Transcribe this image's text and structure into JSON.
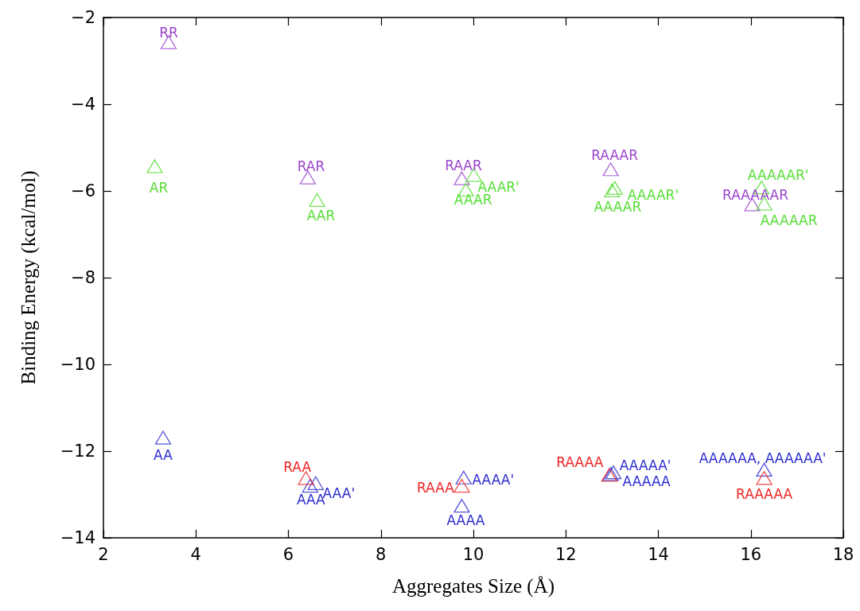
{
  "chart_data": {
    "type": "scatter",
    "xlabel": "Aggregates Size (Å)",
    "ylabel": "Binding Energy (kcal/mol)",
    "xlim": [
      2,
      18
    ],
    "xticks": [
      2,
      4,
      6,
      8,
      10,
      12,
      14,
      16,
      18
    ],
    "ylim": [
      -14,
      -2
    ],
    "yticks": [
      -14,
      -12,
      -10,
      -8,
      -6,
      -4,
      -2
    ],
    "grid": false,
    "marker": "triangle",
    "series": [
      {
        "color": "#9944cc",
        "x": [
          3.41,
          6.42,
          9.75,
          12.97,
          16.03
        ],
        "values": [
          -2.57,
          -5.69,
          -5.71,
          -5.5,
          -6.31
        ]
      },
      {
        "color": "#55dd33",
        "x": [
          3.11,
          6.62,
          10.01,
          9.84,
          13.06,
          13.0,
          16.23,
          16.29
        ],
        "values": [
          -5.43,
          -6.21,
          -5.63,
          -5.97,
          -5.93,
          -5.99,
          -5.92,
          -6.29
        ]
      },
      {
        "color": "#2a2ad0",
        "x": [
          3.29,
          6.47,
          6.59,
          9.79,
          9.75,
          13.03,
          12.97,
          16.29
        ],
        "values": [
          -11.69,
          -12.8,
          -12.74,
          -12.61,
          -13.26,
          -12.49,
          -12.53,
          -12.43
        ]
      },
      {
        "color": "#ee2222",
        "x": [
          6.38,
          9.75,
          12.94,
          16.29
        ],
        "values": [
          -12.62,
          -12.8,
          -12.55,
          -12.62
        ]
      }
    ],
    "annotations": [
      {
        "text": "RR",
        "x": 3.41,
        "y": -2.57
      },
      {
        "text": "RAR",
        "x": 6.42,
        "y": -5.69
      },
      {
        "text": "RAAR",
        "x": 9.75,
        "y": -5.71
      },
      {
        "text": "RAAAR",
        "x": 12.97,
        "y": -5.5
      },
      {
        "text": "RAAAAAR",
        "x": 16.03,
        "y": -6.31
      },
      {
        "text": "AR",
        "x": 3.11,
        "y": -5.43
      },
      {
        "text": "AAR",
        "x": 6.62,
        "y": -6.21
      },
      {
        "text": "AAAR'",
        "x": 10.01,
        "y": -5.63
      },
      {
        "text": "AAAR",
        "x": 9.84,
        "y": -5.97
      },
      {
        "text": "AAAAR'",
        "x": 13.06,
        "y": -5.93
      },
      {
        "text": "AAAAR",
        "x": 13.0,
        "y": -5.99
      },
      {
        "text": "AAAAAR'",
        "x": 16.23,
        "y": -5.92
      },
      {
        "text": "AAAAAR",
        "x": 16.29,
        "y": -6.29
      },
      {
        "text": "AA",
        "x": 3.29,
        "y": -11.69
      },
      {
        "text": "AAA",
        "x": 6.47,
        "y": -12.8
      },
      {
        "text": "AAA'",
        "x": 6.59,
        "y": -12.74
      },
      {
        "text": "AAAA'",
        "x": 9.79,
        "y": -12.61
      },
      {
        "text": "AAAA",
        "x": 9.75,
        "y": -13.26
      },
      {
        "text": "AAAAA'",
        "x": 13.03,
        "y": -12.49
      },
      {
        "text": "AAAAA",
        "x": 12.97,
        "y": -12.53
      },
      {
        "text": "AAAAAA, AAAAAA'",
        "x": 16.29,
        "y": -12.43
      },
      {
        "text": "RAA",
        "x": 6.38,
        "y": -12.62
      },
      {
        "text": "RAAA",
        "x": 9.75,
        "y": -12.8
      },
      {
        "text": "RAAAA",
        "x": 12.94,
        "y": -12.55
      },
      {
        "text": "RAAAAA",
        "x": 16.29,
        "y": -12.62
      }
    ]
  }
}
